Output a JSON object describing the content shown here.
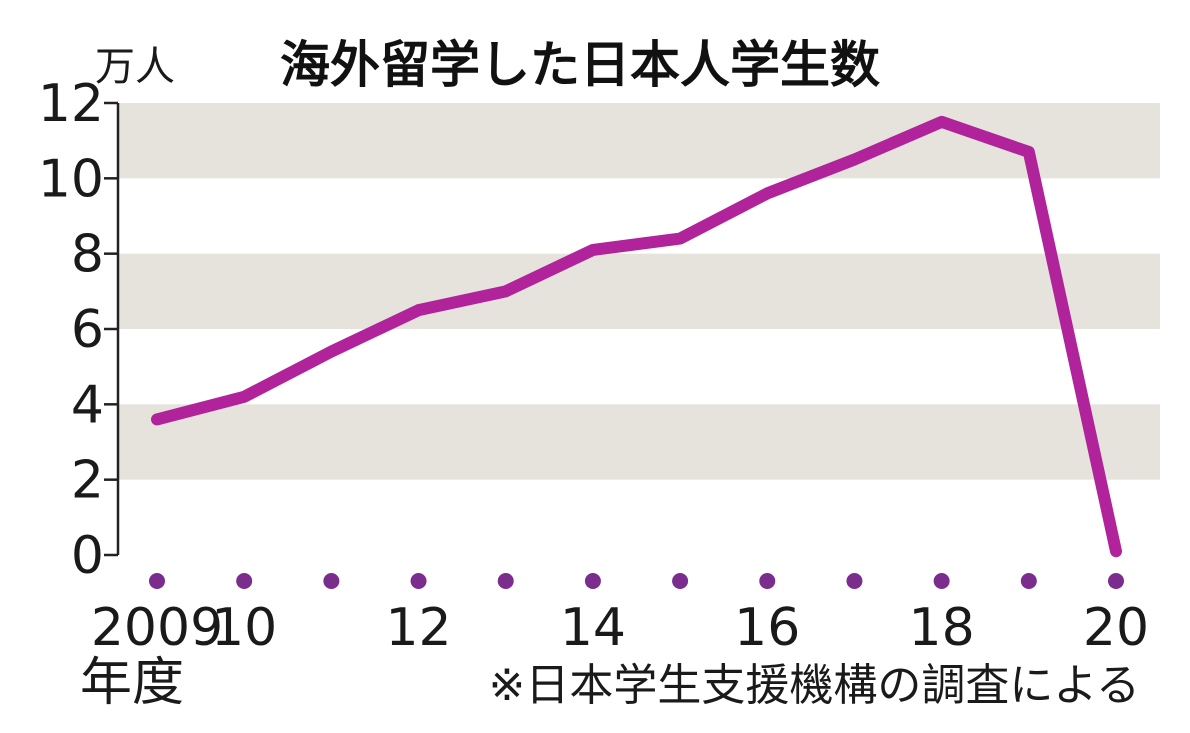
{
  "chart_data": {
    "type": "line",
    "title": "海外留学した日本人学生数",
    "y_unit": "万人",
    "x_unit": "年度",
    "source_note": "※日本学生支援機構の調査による",
    "ylim": [
      0,
      12
    ],
    "y_ticks": [
      "0",
      "2",
      "4",
      "6",
      "8",
      "10",
      "12"
    ],
    "x": [
      2009,
      2010,
      2011,
      2012,
      2013,
      2014,
      2015,
      2016,
      2017,
      2018,
      2019,
      2020
    ],
    "x_tick_labels": [
      "2009",
      "10",
      "",
      "12",
      "",
      "14",
      "",
      "16",
      "",
      "18",
      "",
      "20"
    ],
    "series": [
      {
        "values": [
          3.6,
          4.2,
          5.4,
          6.5,
          7.0,
          8.1,
          8.4,
          9.6,
          10.5,
          11.5,
          10.7,
          0.1
        ]
      }
    ],
    "bands": [
      [
        2,
        4
      ],
      [
        6,
        8
      ],
      [
        10,
        12
      ]
    ],
    "colors": {
      "line": "#b0239a",
      "dots": "#7b2d8e",
      "band": "#e6e3dd"
    },
    "grid": false
  }
}
